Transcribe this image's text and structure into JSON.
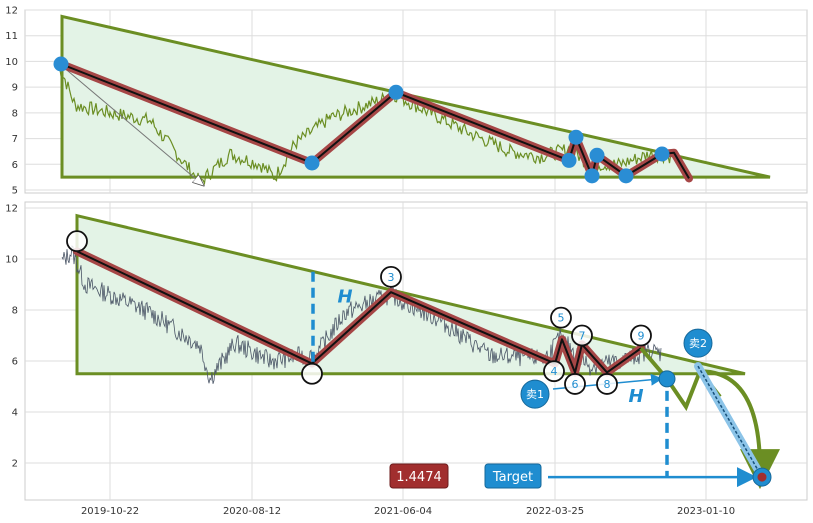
{
  "chart_data": [
    {
      "type": "line",
      "panel": "top",
      "ylim": [
        4.8,
        12.1
      ],
      "yticks": [
        5,
        6,
        7,
        8,
        9,
        10,
        11,
        12
      ],
      "grid": true,
      "price_series_color": "#6b8e23",
      "pattern": "descending triangle",
      "triangle": {
        "apex_left_y": 11.75,
        "apex_right_y": 5.5,
        "support_y": 5.5
      },
      "zigzag_points": [
        9.9,
        6.05,
        8.8,
        6.15,
        7.05,
        5.55,
        6.35,
        5.55,
        6.4,
        6.45,
        5.45
      ],
      "marker_color": "#2a8dd4"
    },
    {
      "type": "line",
      "panel": "bottom",
      "ylim": [
        0.5,
        12.2
      ],
      "yticks": [
        2,
        4,
        6,
        8,
        10,
        12
      ],
      "x_tick_labels": [
        "2019-10-22",
        "2020-08-12",
        "2021-06-04",
        "2022-03-25",
        "2023-01-10"
      ],
      "grid": true,
      "price_series_color": "#4a5566",
      "pattern": "descending triangle",
      "triangle": {
        "apex_left_y": 11.7,
        "apex_right_y": 5.5,
        "support_y": 5.5
      },
      "zigzag_points": [
        10.3,
        5.9,
        8.7,
        5.9,
        6.85,
        5.55,
        6.65,
        5.55,
        6.5
      ],
      "point_labels": [
        "",
        "",
        "3",
        "4",
        "5",
        "6",
        "7",
        "8",
        "9"
      ],
      "height_label": "H",
      "breakout_y": 5.3,
      "target_y": 1.4474,
      "target_value_label": "1.4474",
      "target_button_label": "Target",
      "sell_labels": [
        "卖1",
        "卖2"
      ],
      "accent_blue": "#1f8dd0",
      "accent_red": "#a12e2e",
      "triangle_color": "#6b8e23"
    }
  ]
}
